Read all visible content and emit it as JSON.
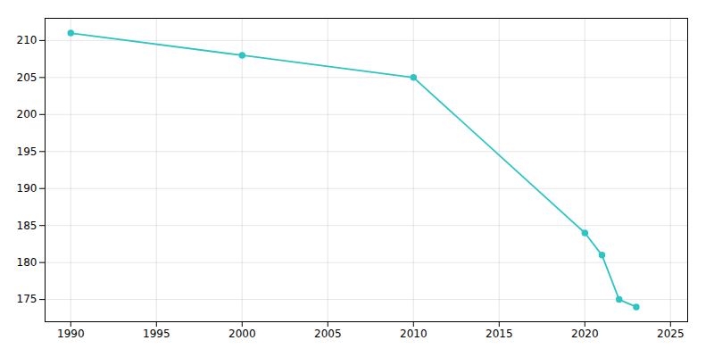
{
  "chart_data": {
    "type": "line",
    "x": [
      1990,
      2000,
      2010,
      2020,
      2021,
      2022,
      2023
    ],
    "values": [
      211,
      208,
      205,
      184,
      181,
      175,
      174
    ],
    "color": "#2ec4c4",
    "marker": "circle",
    "xlim": [
      1988.5,
      2026
    ],
    "ylim": [
      172,
      213
    ],
    "xticks": [
      1990,
      1995,
      2000,
      2005,
      2010,
      2015,
      2020,
      2025
    ],
    "yticks": [
      175,
      180,
      185,
      190,
      195,
      200,
      205,
      210
    ],
    "grid": true
  }
}
